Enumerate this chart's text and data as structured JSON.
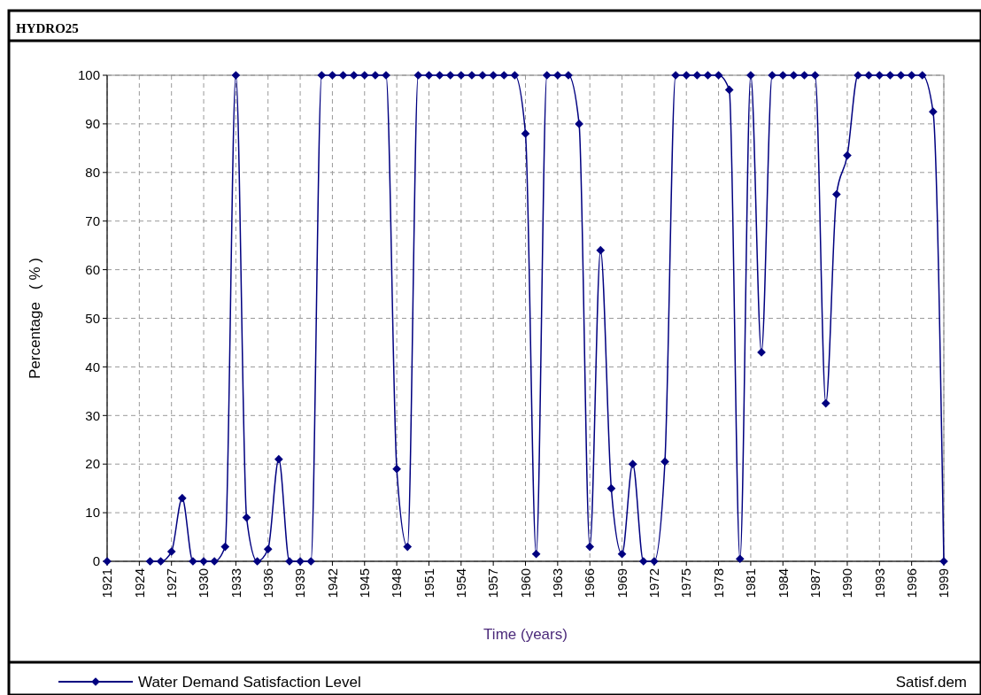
{
  "chart_data": {
    "type": "line",
    "title": "HYDRO25",
    "xlabel": "Time (years)",
    "ylabel": "Percentage   ( % )",
    "x": [
      1921,
      1922,
      1923,
      1924,
      1925,
      1926,
      1927,
      1928,
      1929,
      1930,
      1931,
      1932,
      1933,
      1934,
      1935,
      1936,
      1937,
      1938,
      1939,
      1940,
      1941,
      1942,
      1943,
      1944,
      1945,
      1946,
      1947,
      1948,
      1949,
      1950,
      1951,
      1952,
      1953,
      1954,
      1955,
      1956,
      1957,
      1958,
      1959,
      1960,
      1961,
      1962,
      1963,
      1964,
      1965,
      1966,
      1967,
      1968,
      1969,
      1970,
      1971,
      1972,
      1973,
      1974,
      1975,
      1976,
      1977,
      1978,
      1979,
      1980,
      1981,
      1982,
      1983,
      1984,
      1985,
      1986,
      1987,
      1988,
      1989,
      1990,
      1991,
      1992,
      1993,
      1994,
      1995,
      1996,
      1997,
      1998,
      1999
    ],
    "series": [
      {
        "name": "Water Demand Satisfaction Level",
        "color": "#000080",
        "values": [
          0,
          null,
          null,
          null,
          0,
          0,
          2,
          13,
          0,
          0,
          0,
          3,
          100,
          9,
          0,
          2.5,
          21,
          0,
          0,
          0,
          100,
          100,
          100,
          100,
          100,
          100,
          100,
          19,
          3,
          100,
          100,
          100,
          100,
          100,
          100,
          100,
          100,
          100,
          100,
          88,
          1.5,
          100,
          100,
          100,
          90,
          3,
          64,
          15,
          1.5,
          20,
          0,
          0,
          20.5,
          100,
          100,
          100,
          100,
          100,
          97,
          0.5,
          100,
          43,
          100,
          100,
          100,
          100,
          100,
          32.5,
          75.5,
          83.5,
          100,
          100,
          100,
          100,
          100,
          100,
          100,
          92.5,
          0
        ]
      }
    ],
    "xlim": [
      1921,
      1999
    ],
    "xticks": [
      1921,
      1924,
      1927,
      1930,
      1933,
      1936,
      1939,
      1942,
      1945,
      1948,
      1951,
      1954,
      1957,
      1960,
      1963,
      1966,
      1969,
      1972,
      1975,
      1978,
      1981,
      1984,
      1987,
      1990,
      1993,
      1996,
      1999
    ],
    "ylim": [
      0,
      100
    ],
    "yticks": [
      0,
      10,
      20,
      30,
      40,
      50,
      60,
      70,
      80,
      90,
      100
    ],
    "grid": true,
    "legend": "bottom",
    "marker": "diamond",
    "line_style": "solid",
    "annotations": [
      "Satisf.dem"
    ]
  }
}
